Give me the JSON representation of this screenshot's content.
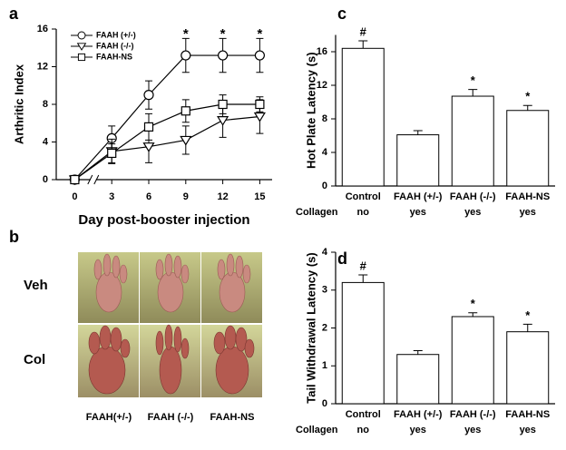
{
  "chart_data": [
    {
      "type": "line",
      "panel": "a",
      "ylabel": "Arthritic Index",
      "xlabel": "Day post-booster injection",
      "x": [
        0,
        3,
        6,
        9,
        12,
        15
      ],
      "xlim": [
        -1.5,
        16
      ],
      "xticks": [
        0,
        3,
        6,
        9,
        12,
        15
      ],
      "ylim": [
        0,
        16
      ],
      "yticks": [
        0,
        4,
        8,
        12,
        16
      ],
      "series": [
        {
          "name": "FAAH (+/-)",
          "color": "#000000",
          "marker": "circle",
          "values": [
            0,
            4.4,
            9.0,
            13.2,
            13.2,
            13.2
          ],
          "errors": [
            0,
            1.3,
            1.5,
            1.8,
            1.8,
            1.8
          ]
        },
        {
          "name": "FAAH (-/-)",
          "color": "#000000",
          "marker": "triangle",
          "values": [
            0,
            3.0,
            3.5,
            4.2,
            6.3,
            6.7
          ],
          "errors": [
            0,
            1.3,
            1.7,
            1.5,
            1.8,
            1.8
          ]
        },
        {
          "name": "FAAH-NS",
          "color": "#000000",
          "marker": "square",
          "values": [
            0,
            2.8,
            5.6,
            7.3,
            8.0,
            8.0
          ],
          "errors": [
            0,
            1.0,
            1.4,
            1.2,
            1.0,
            0.8
          ]
        }
      ],
      "annotations": [
        {
          "x": 9,
          "text": "*"
        },
        {
          "x": 12,
          "text": "*"
        },
        {
          "x": 15,
          "text": "*"
        }
      ]
    },
    {
      "type": "bar",
      "panel": "c",
      "ylabel": "Hot Plate Latency (s)",
      "categories": [
        "Control",
        "FAAH (+/-)",
        "FAAH (-/-)",
        "FAAH-NS"
      ],
      "values": [
        16.4,
        6.1,
        10.7,
        9.0
      ],
      "errors": [
        0.9,
        0.5,
        0.8,
        0.6
      ],
      "color": "#ffffff",
      "markers": [
        "#",
        null,
        "*",
        "*"
      ],
      "collagen": {
        "label": "Collagen",
        "values": [
          "no",
          "yes",
          "yes",
          "yes"
        ]
      },
      "ylim": [
        0,
        18
      ],
      "yticks": [
        0,
        4,
        8,
        12,
        16
      ]
    },
    {
      "type": "bar",
      "panel": "d",
      "ylabel": "Tail Withdrawal Latency (s)",
      "categories": [
        "Control",
        "FAAH (+/-)",
        "FAAH (-/-)",
        "FAAH-NS"
      ],
      "values": [
        3.2,
        1.3,
        2.3,
        1.9
      ],
      "errors": [
        0.2,
        0.1,
        0.1,
        0.2
      ],
      "color": "#ffffff",
      "markers": [
        "#",
        null,
        "*",
        "*"
      ],
      "collagen": {
        "label": "Collagen",
        "values": [
          "no",
          "yes",
          "yes",
          "yes"
        ]
      },
      "ylim": [
        0,
        4
      ],
      "yticks": [
        0,
        1,
        2,
        3,
        4
      ]
    }
  ],
  "photo_panel": {
    "panel": "b",
    "rows": [
      "Veh",
      "Col"
    ],
    "columns": [
      "FAAH(+/-)",
      "FAAH (-/-)",
      "FAAH-NS"
    ]
  }
}
